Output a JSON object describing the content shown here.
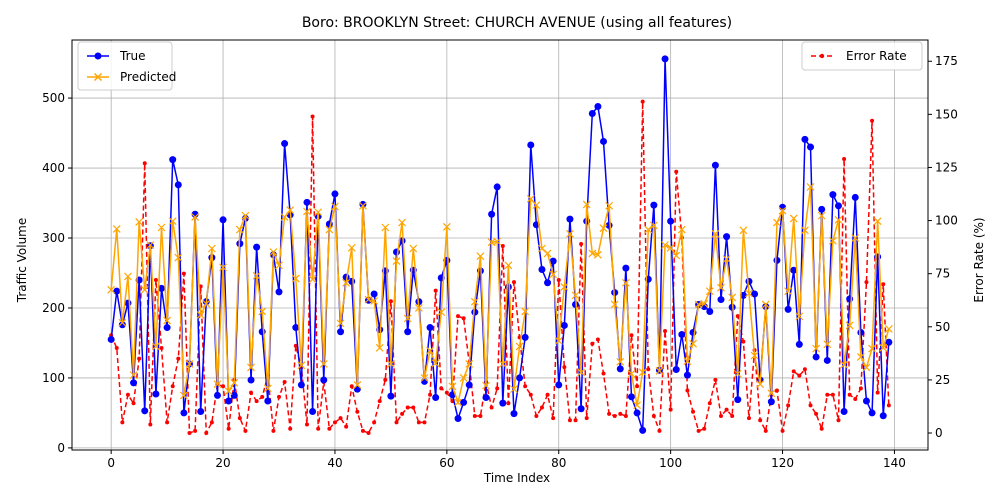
{
  "chart_data": {
    "type": "line",
    "title": "Boro: BROOKLYN Street: CHURCH AVENUE (using all features)",
    "xlabel": "Time Index",
    "ylabel": "Traffic Volume",
    "y2label": "Error Rate (%)",
    "xlim": [
      -7,
      146
    ],
    "ylim": [
      -3,
      583
    ],
    "y2lim": [
      -8,
      185
    ],
    "xticks": [
      0,
      20,
      40,
      60,
      80,
      100,
      120,
      140
    ],
    "yticks": [
      0,
      100,
      200,
      300,
      400,
      500
    ],
    "y2ticks": [
      0,
      25,
      50,
      75,
      100,
      125,
      150,
      175
    ],
    "grid": true,
    "legend_left": [
      "True",
      "Predicted"
    ],
    "legend_right": [
      "Error Rate"
    ],
    "colors": {
      "true": "#0000ff",
      "predicted": "#ffa500",
      "error": "#ff0000"
    },
    "series": [
      {
        "name": "True",
        "axis": "left",
        "values": [
          155,
          224,
          176,
          207,
          93,
          240,
          53,
          289,
          77,
          228,
          172,
          412,
          376,
          50,
          120,
          334,
          52,
          209,
          272,
          75,
          326,
          67,
          75,
          292,
          328,
          97,
          287,
          166,
          67,
          276,
          223,
          435,
          333,
          172,
          90,
          351,
          52,
          331,
          97,
          320,
          363,
          166,
          244,
          238,
          84,
          348,
          211,
          220,
          169,
          253,
          74,
          280,
          296,
          166,
          254,
          209,
          95,
          172,
          72,
          243,
          268,
          76,
          42,
          65,
          90,
          194,
          253,
          72,
          334,
          373,
          64,
          230,
          49,
          100,
          158,
          433,
          319,
          255,
          236,
          267,
          90,
          175,
          327,
          205,
          56,
          324,
          478,
          488,
          438,
          318,
          222,
          113,
          257,
          73,
          50,
          25,
          241,
          347,
          111,
          556,
          324,
          112,
          162,
          104,
          165,
          205,
          202,
          195,
          404,
          212,
          302,
          201,
          69,
          218,
          238,
          220,
          97,
          202,
          66,
          268,
          344,
          198,
          254,
          148,
          441,
          430,
          130,
          341,
          125,
          362,
          346,
          52,
          213,
          358,
          165,
          67,
          50,
          273,
          46,
          151
        ]
      },
      {
        "name": "Predicted",
        "axis": "left",
        "values": [
          226,
          313,
          179,
          245,
          104,
          323,
          226,
          290,
          145,
          315,
          182,
          324,
          272,
          75,
          120,
          330,
          190,
          206,
          285,
          91,
          258,
          81,
          93,
          312,
          332,
          115,
          246,
          195,
          85,
          280,
          261,
          330,
          340,
          242,
          118,
          338,
          241,
          337,
          120,
          312,
          345,
          178,
          236,
          286,
          90,
          346,
          212,
          210,
          143,
          315,
          120,
          267,
          322,
          185,
          285,
          200,
          100,
          139,
          121,
          194,
          316,
          88,
          65,
          100,
          120,
          209,
          274,
          89,
          294,
          295,
          120,
          261,
          84,
          145,
          195,
          356,
          347,
          285,
          278,
          248,
          153,
          230,
          306,
          218,
          108,
          348,
          278,
          276,
          314,
          346,
          205,
          123,
          236,
          106,
          61,
          108,
          312,
          318,
          110,
          290,
          286,
          275,
          312,
          124,
          149,
          205,
          206,
          224,
          306,
          229,
          270,
          215,
          106,
          311,
          221,
          132,
          91,
          205,
          78,
          322,
          339,
          224,
          328,
          188,
          311,
          373,
          142,
          332,
          148,
          296,
          326,
          119,
          175,
          300,
          130,
          115,
          142,
          324,
          143,
          170
        ]
      },
      {
        "name": "Error Rate",
        "axis": "right",
        "values": [
          46,
          40,
          5,
          18,
          14,
          35,
          127,
          4,
          72,
          40,
          5,
          22,
          35,
          75,
          0,
          1,
          69,
          0,
          5,
          23,
          22,
          2,
          25,
          7,
          1,
          19,
          15,
          17,
          27,
          1,
          17,
          24,
          2,
          41,
          31,
          4,
          149,
          2,
          24,
          2,
          5,
          7,
          3,
          22,
          10,
          1,
          0,
          5,
          15,
          25,
          62,
          5,
          9,
          12,
          12,
          5,
          5,
          18,
          67,
          21,
          19,
          15,
          55,
          54,
          33,
          8,
          8,
          24,
          12,
          21,
          88,
          14,
          71,
          45,
          22,
          18,
          8,
          12,
          18,
          7,
          72,
          31,
          6,
          6,
          89,
          7,
          42,
          44,
          28,
          9,
          8,
          9,
          8,
          46,
          22,
          156,
          30,
          8,
          1,
          48,
          11,
          123,
          92,
          20,
          10,
          1,
          2,
          14,
          25,
          8,
          11,
          8,
          55,
          43,
          7,
          39,
          6,
          1,
          18,
          20,
          1,
          13,
          29,
          27,
          30,
          13,
          9,
          2,
          18,
          18,
          6,
          129,
          18,
          16,
          21,
          71,
          147,
          19,
          70,
          13
        ]
      }
    ]
  }
}
